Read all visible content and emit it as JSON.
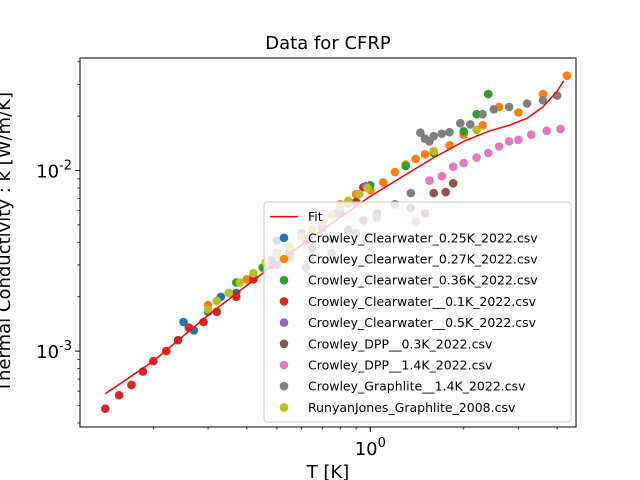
{
  "chart_data": {
    "type": "scatter",
    "title": "Data for CFRP",
    "xlabel": "T [K]",
    "ylabel": "Thermal Conductivity : k [W/m/K]",
    "xscale": "log",
    "yscale": "log",
    "xlim": [
      0.116,
      4.6
    ],
    "ylim": [
      0.00038,
      0.042
    ],
    "x_tick_labels": [
      {
        "value": 1,
        "label": "10^0"
      }
    ],
    "y_tick_labels": [
      {
        "value": 0.001,
        "label": "10^-3"
      },
      {
        "value": 0.01,
        "label": "10^-2"
      }
    ],
    "legend_position": "lower-right",
    "grid": false,
    "fit": {
      "name": "Fit",
      "color": "#ff0000",
      "points": [
        [
          0.14,
          0.00058
        ],
        [
          0.2,
          0.00088
        ],
        [
          0.3,
          0.00158
        ],
        [
          0.5,
          0.0031
        ],
        [
          0.8,
          0.0055
        ],
        [
          1.0,
          0.0072
        ],
        [
          1.3,
          0.0095
        ],
        [
          1.6,
          0.0118
        ],
        [
          2.0,
          0.0145
        ],
        [
          2.4,
          0.0165
        ],
        [
          2.8,
          0.0178
        ],
        [
          3.2,
          0.0195
        ],
        [
          3.6,
          0.0225
        ],
        [
          4.0,
          0.0275
        ],
        [
          4.2,
          0.0315
        ]
      ]
    },
    "series": [
      {
        "name": "Crowley_Clearwater_0.25K_2022.csv",
        "color": "#1f77b4",
        "points": [
          [
            0.25,
            0.00145
          ],
          [
            0.27,
            0.0013
          ],
          [
            0.3,
            0.00165
          ],
          [
            0.33,
            0.002
          ],
          [
            0.37,
            0.0021
          ],
          [
            0.42,
            0.0026
          ],
          [
            0.48,
            0.0032
          ],
          [
            0.5,
            0.0041
          ],
          [
            0.55,
            0.0038
          ],
          [
            0.6,
            0.0045
          ]
        ]
      },
      {
        "name": "Crowley_Clearwater_0.27K_2022.csv",
        "color": "#ff7f0e",
        "points": [
          [
            0.3,
            0.0018
          ],
          [
            0.4,
            0.0025
          ],
          [
            0.5,
            0.0035
          ],
          [
            0.6,
            0.0043
          ],
          [
            0.7,
            0.0052
          ],
          [
            0.8,
            0.0065
          ],
          [
            0.9,
            0.0074
          ],
          [
            1.0,
            0.0078
          ],
          [
            1.1,
            0.0086
          ],
          [
            1.2,
            0.0098
          ],
          [
            1.3,
            0.0108
          ],
          [
            1.4,
            0.0116
          ],
          [
            1.5,
            0.0123
          ],
          [
            1.6,
            0.0128
          ],
          [
            1.8,
            0.0138
          ],
          [
            2.0,
            0.0158
          ],
          [
            2.3,
            0.0178
          ],
          [
            2.6,
            0.0225
          ],
          [
            3.0,
            0.021
          ],
          [
            3.6,
            0.0265
          ],
          [
            4.3,
            0.0335
          ]
        ]
      },
      {
        "name": "Crowley_Clearwater_0.36K_2022.csv",
        "color": "#2ca02c",
        "points": [
          [
            0.37,
            0.0024
          ],
          [
            0.45,
            0.0029
          ],
          [
            0.55,
            0.0038
          ],
          [
            0.7,
            0.0052
          ],
          [
            0.85,
            0.0067
          ],
          [
            1.0,
            0.0083
          ],
          [
            1.3,
            0.0106
          ],
          [
            1.6,
            0.0125
          ],
          [
            2.0,
            0.0165
          ],
          [
            2.2,
            0.0205
          ],
          [
            2.4,
            0.0265
          ]
        ]
      },
      {
        "name": "Crowley_Clearwater__0.1K_2022.csv",
        "color": "#d62728",
        "points": [
          [
            0.14,
            0.00048
          ],
          [
            0.155,
            0.00057
          ],
          [
            0.17,
            0.00065
          ],
          [
            0.185,
            0.00077
          ],
          [
            0.2,
            0.00088
          ],
          [
            0.22,
            0.001
          ],
          [
            0.24,
            0.00115
          ],
          [
            0.26,
            0.00135
          ],
          [
            0.29,
            0.00145
          ],
          [
            0.32,
            0.00165
          ],
          [
            0.37,
            0.002
          ],
          [
            0.42,
            0.0025
          ],
          [
            0.48,
            0.003
          ],
          [
            0.55,
            0.0035
          ],
          [
            0.62,
            0.0041
          ],
          [
            0.7,
            0.0048
          ],
          [
            0.8,
            0.0058
          ],
          [
            0.9,
            0.0067
          ],
          [
            0.95,
            0.0081
          ]
        ]
      },
      {
        "name": "Crowley_Clearwater__0.5K_2022.csv",
        "color": "#9467bd",
        "points": [
          [
            0.5,
            0.003
          ],
          [
            0.55,
            0.0036
          ],
          [
            0.62,
            0.0042
          ],
          [
            0.7,
            0.0049
          ],
          [
            0.78,
            0.0058
          ],
          [
            0.85,
            0.0066
          ],
          [
            0.92,
            0.0074
          ],
          [
            0.97,
            0.0082
          ]
        ]
      },
      {
        "name": "Crowley_DPP__0.3K_2022.csv",
        "color": "#8c564b",
        "points": [
          [
            0.55,
            0.0033
          ],
          [
            0.65,
            0.0037
          ],
          [
            0.75,
            0.0042
          ],
          [
            0.85,
            0.0047
          ],
          [
            0.95,
            0.0053
          ],
          [
            1.05,
            0.0058
          ],
          [
            1.2,
            0.0065
          ],
          [
            1.35,
            0.0062
          ],
          [
            1.5,
            0.0058
          ],
          [
            1.6,
            0.0075
          ],
          [
            1.75,
            0.0076
          ],
          [
            1.85,
            0.0085
          ]
        ]
      },
      {
        "name": "Crowley_DPP__1.4K_2022.csv",
        "color": "#e377c2",
        "points": [
          [
            1.4,
            0.0052
          ],
          [
            1.55,
            0.0088
          ],
          [
            1.7,
            0.0093
          ],
          [
            1.85,
            0.0105
          ],
          [
            2.0,
            0.011
          ],
          [
            2.2,
            0.0118
          ],
          [
            2.4,
            0.0125
          ],
          [
            2.6,
            0.0136
          ],
          [
            2.8,
            0.0145
          ],
          [
            3.0,
            0.0148
          ],
          [
            3.3,
            0.0158
          ],
          [
            3.7,
            0.0166
          ],
          [
            4.1,
            0.017
          ]
        ]
      },
      {
        "name": "Crowley_Graphlite__1.4K_2022.csv",
        "color": "#7f7f7f",
        "points": [
          [
            0.62,
            0.0029
          ],
          [
            0.75,
            0.0035
          ],
          [
            0.9,
            0.0045
          ],
          [
            1.05,
            0.0055
          ],
          [
            1.2,
            0.0065
          ],
          [
            1.35,
            0.0075
          ],
          [
            1.45,
            0.0162
          ],
          [
            1.5,
            0.015
          ],
          [
            1.55,
            0.0145
          ],
          [
            1.6,
            0.0155
          ],
          [
            1.7,
            0.016
          ],
          [
            1.8,
            0.0163
          ],
          [
            1.95,
            0.0183
          ],
          [
            2.1,
            0.018
          ],
          [
            2.3,
            0.0205
          ],
          [
            2.5,
            0.0218
          ],
          [
            2.8,
            0.0225
          ],
          [
            3.2,
            0.0235
          ],
          [
            3.6,
            0.0245
          ],
          [
            4.0,
            0.026
          ]
        ]
      },
      {
        "name": "RunyanJones_Graphlite_2008.csv",
        "color": "#bcbd22",
        "points": [
          [
            0.3,
            0.0017
          ],
          [
            0.32,
            0.0019
          ],
          [
            0.35,
            0.0021
          ],
          [
            0.38,
            0.0024
          ],
          [
            0.42,
            0.0027
          ],
          [
            0.46,
            0.0031
          ],
          [
            0.5,
            0.0034
          ],
          [
            0.55,
            0.0038
          ],
          [
            0.6,
            0.0043
          ],
          [
            0.65,
            0.0047
          ],
          [
            0.7,
            0.0052
          ],
          [
            0.75,
            0.0057
          ],
          [
            0.8,
            0.0063
          ],
          [
            0.85,
            0.0068
          ],
          [
            0.92,
            0.0074
          ],
          [
            0.98,
            0.008
          ],
          [
            1.6,
            0.0128
          ],
          [
            2.2,
            0.0168
          ]
        ]
      }
    ]
  }
}
